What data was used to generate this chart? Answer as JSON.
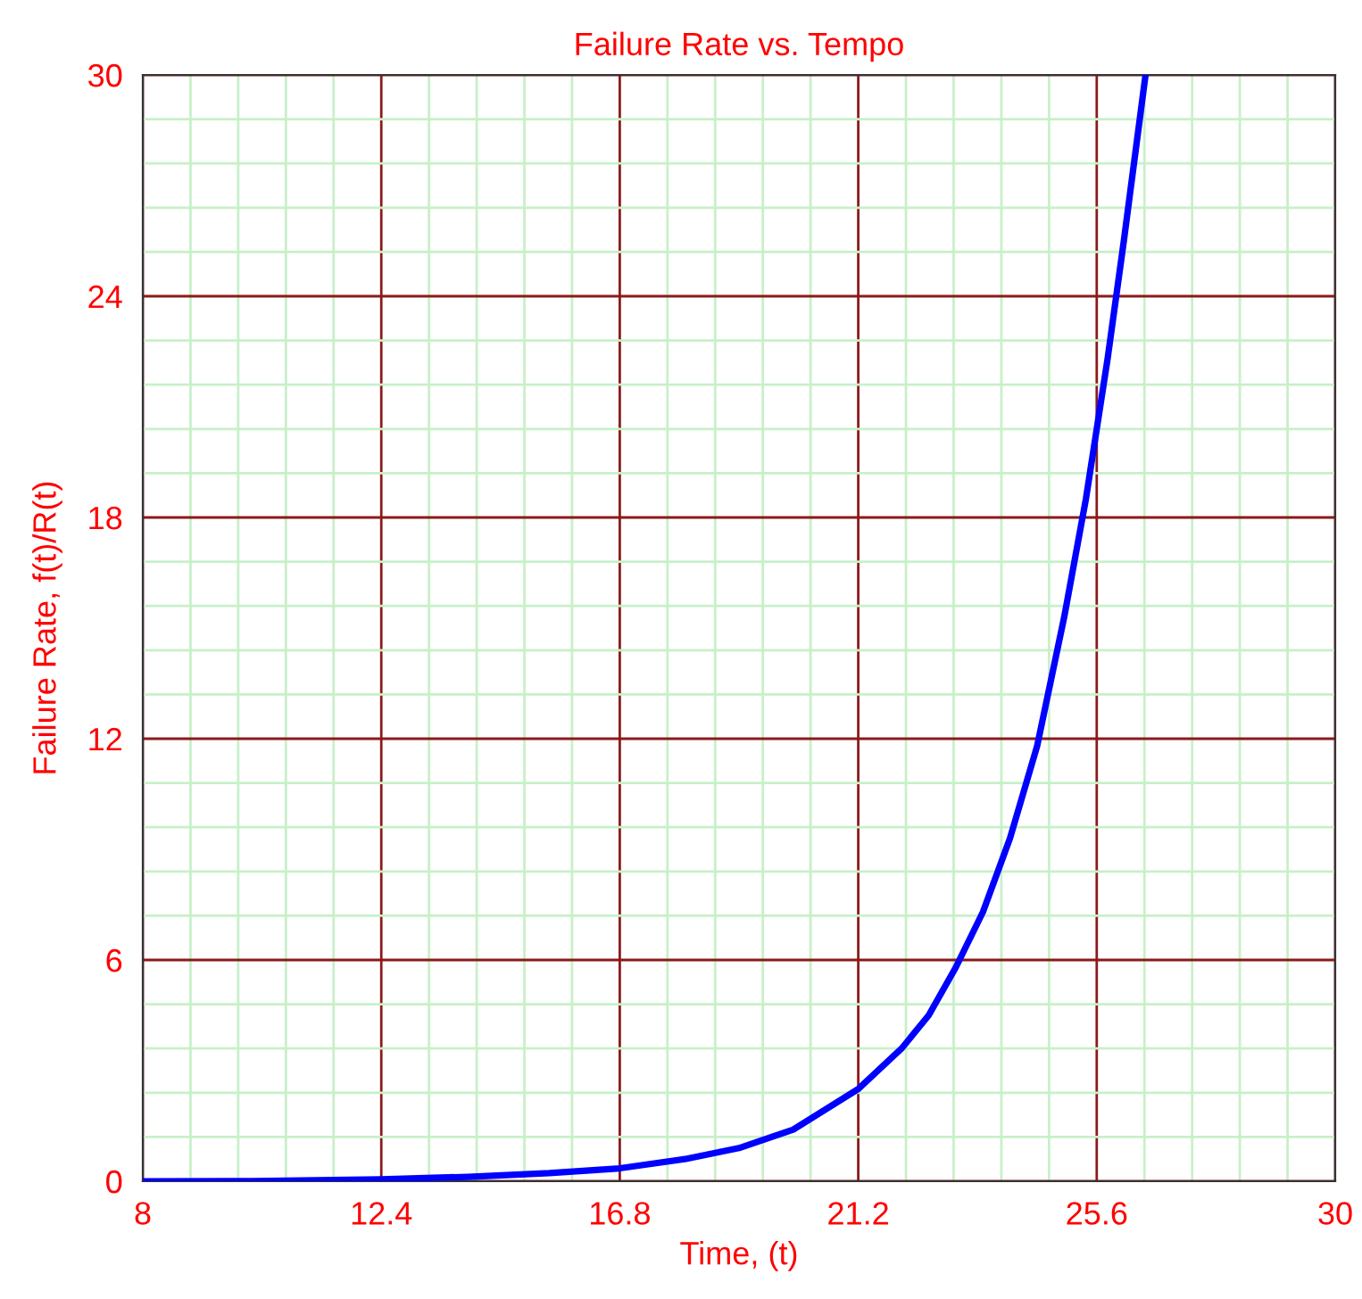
{
  "chart_data": {
    "type": "line",
    "title": "Failure Rate vs. Tempo",
    "xlabel": "Time, (t)",
    "ylabel": "Failure Rate, f(t)/R(t)",
    "x": [
      8,
      10,
      12.4,
      14,
      15.5,
      16.8,
      18,
      19,
      20,
      21.2,
      22,
      22.5,
      23,
      23.5,
      24,
      24.5,
      25,
      25.4,
      25.8,
      26.1,
      26.5
    ],
    "series": [
      {
        "color": "#0000ff",
        "values": [
          0,
          0.005,
          0.05,
          0.12,
          0.22,
          0.35,
          0.6,
          0.9,
          1.4,
          2.5,
          3.6,
          4.5,
          5.8,
          7.3,
          9.3,
          11.8,
          15.3,
          18.5,
          22.3,
          25.5,
          30
        ]
      }
    ],
    "xlim": [
      8,
      30
    ],
    "xticks": [
      8,
      12.4,
      16.8,
      21.2,
      25.6,
      30
    ],
    "ylim": [
      0,
      30
    ],
    "yticks": [
      0,
      6,
      12,
      18,
      24,
      30
    ],
    "grid": true,
    "legend": false,
    "marker": "none",
    "line_style": "solid"
  }
}
